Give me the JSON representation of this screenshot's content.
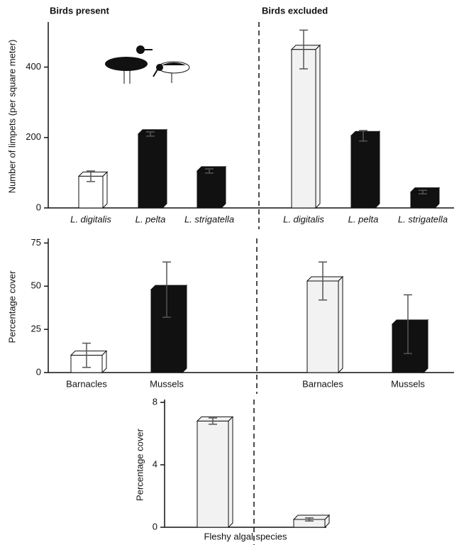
{
  "chart_data": [
    {
      "type": "bar",
      "ylabel": "Number of limpets (per square meter)",
      "ylim": [
        0,
        520
      ],
      "yticks": [
        0,
        200,
        400
      ],
      "groups": [
        {
          "name": "Birds present",
          "categories": [
            "L. digitalis",
            "L. pelta",
            "L. strigatella"
          ],
          "values": [
            90,
            210,
            105
          ],
          "errors": [
            15,
            6,
            6
          ],
          "colors": [
            "#ffffff",
            "#111111",
            "#111111"
          ]
        },
        {
          "name": "Birds excluded",
          "categories": [
            "L. digitalis",
            "L. pelta",
            "L. strigatella"
          ],
          "values": [
            450,
            205,
            45
          ],
          "errors": [
            55,
            15,
            5
          ],
          "colors": [
            "#f2f2f2",
            "#111111",
            "#111111"
          ]
        }
      ]
    },
    {
      "type": "bar",
      "ylabel": "Percentage cover",
      "ylim": [
        0,
        76
      ],
      "yticks": [
        0,
        25,
        50,
        75
      ],
      "groups": [
        {
          "categories": [
            "Barnacles",
            "Mussels"
          ],
          "values": [
            10,
            48
          ],
          "errors": [
            7,
            16
          ],
          "colors": [
            "#ffffff",
            "#111111"
          ]
        },
        {
          "categories": [
            "Barnacles",
            "Mussels"
          ],
          "values": [
            53,
            28
          ],
          "errors": [
            11,
            17
          ],
          "colors": [
            "#f2f2f2",
            "#111111"
          ]
        }
      ]
    },
    {
      "type": "bar",
      "ylabel": "Percentage cover",
      "xlabel": "Fleshy algal species",
      "ylim": [
        0,
        8
      ],
      "yticks": [
        0,
        4,
        8
      ],
      "groups": [
        {
          "values": [
            6.8
          ],
          "errors": [
            0.2
          ],
          "colors": [
            "#f2f2f2"
          ]
        },
        {
          "values": [
            0.5
          ],
          "errors": [
            0.1
          ],
          "colors": [
            "#f2f2f2"
          ]
        }
      ]
    }
  ]
}
